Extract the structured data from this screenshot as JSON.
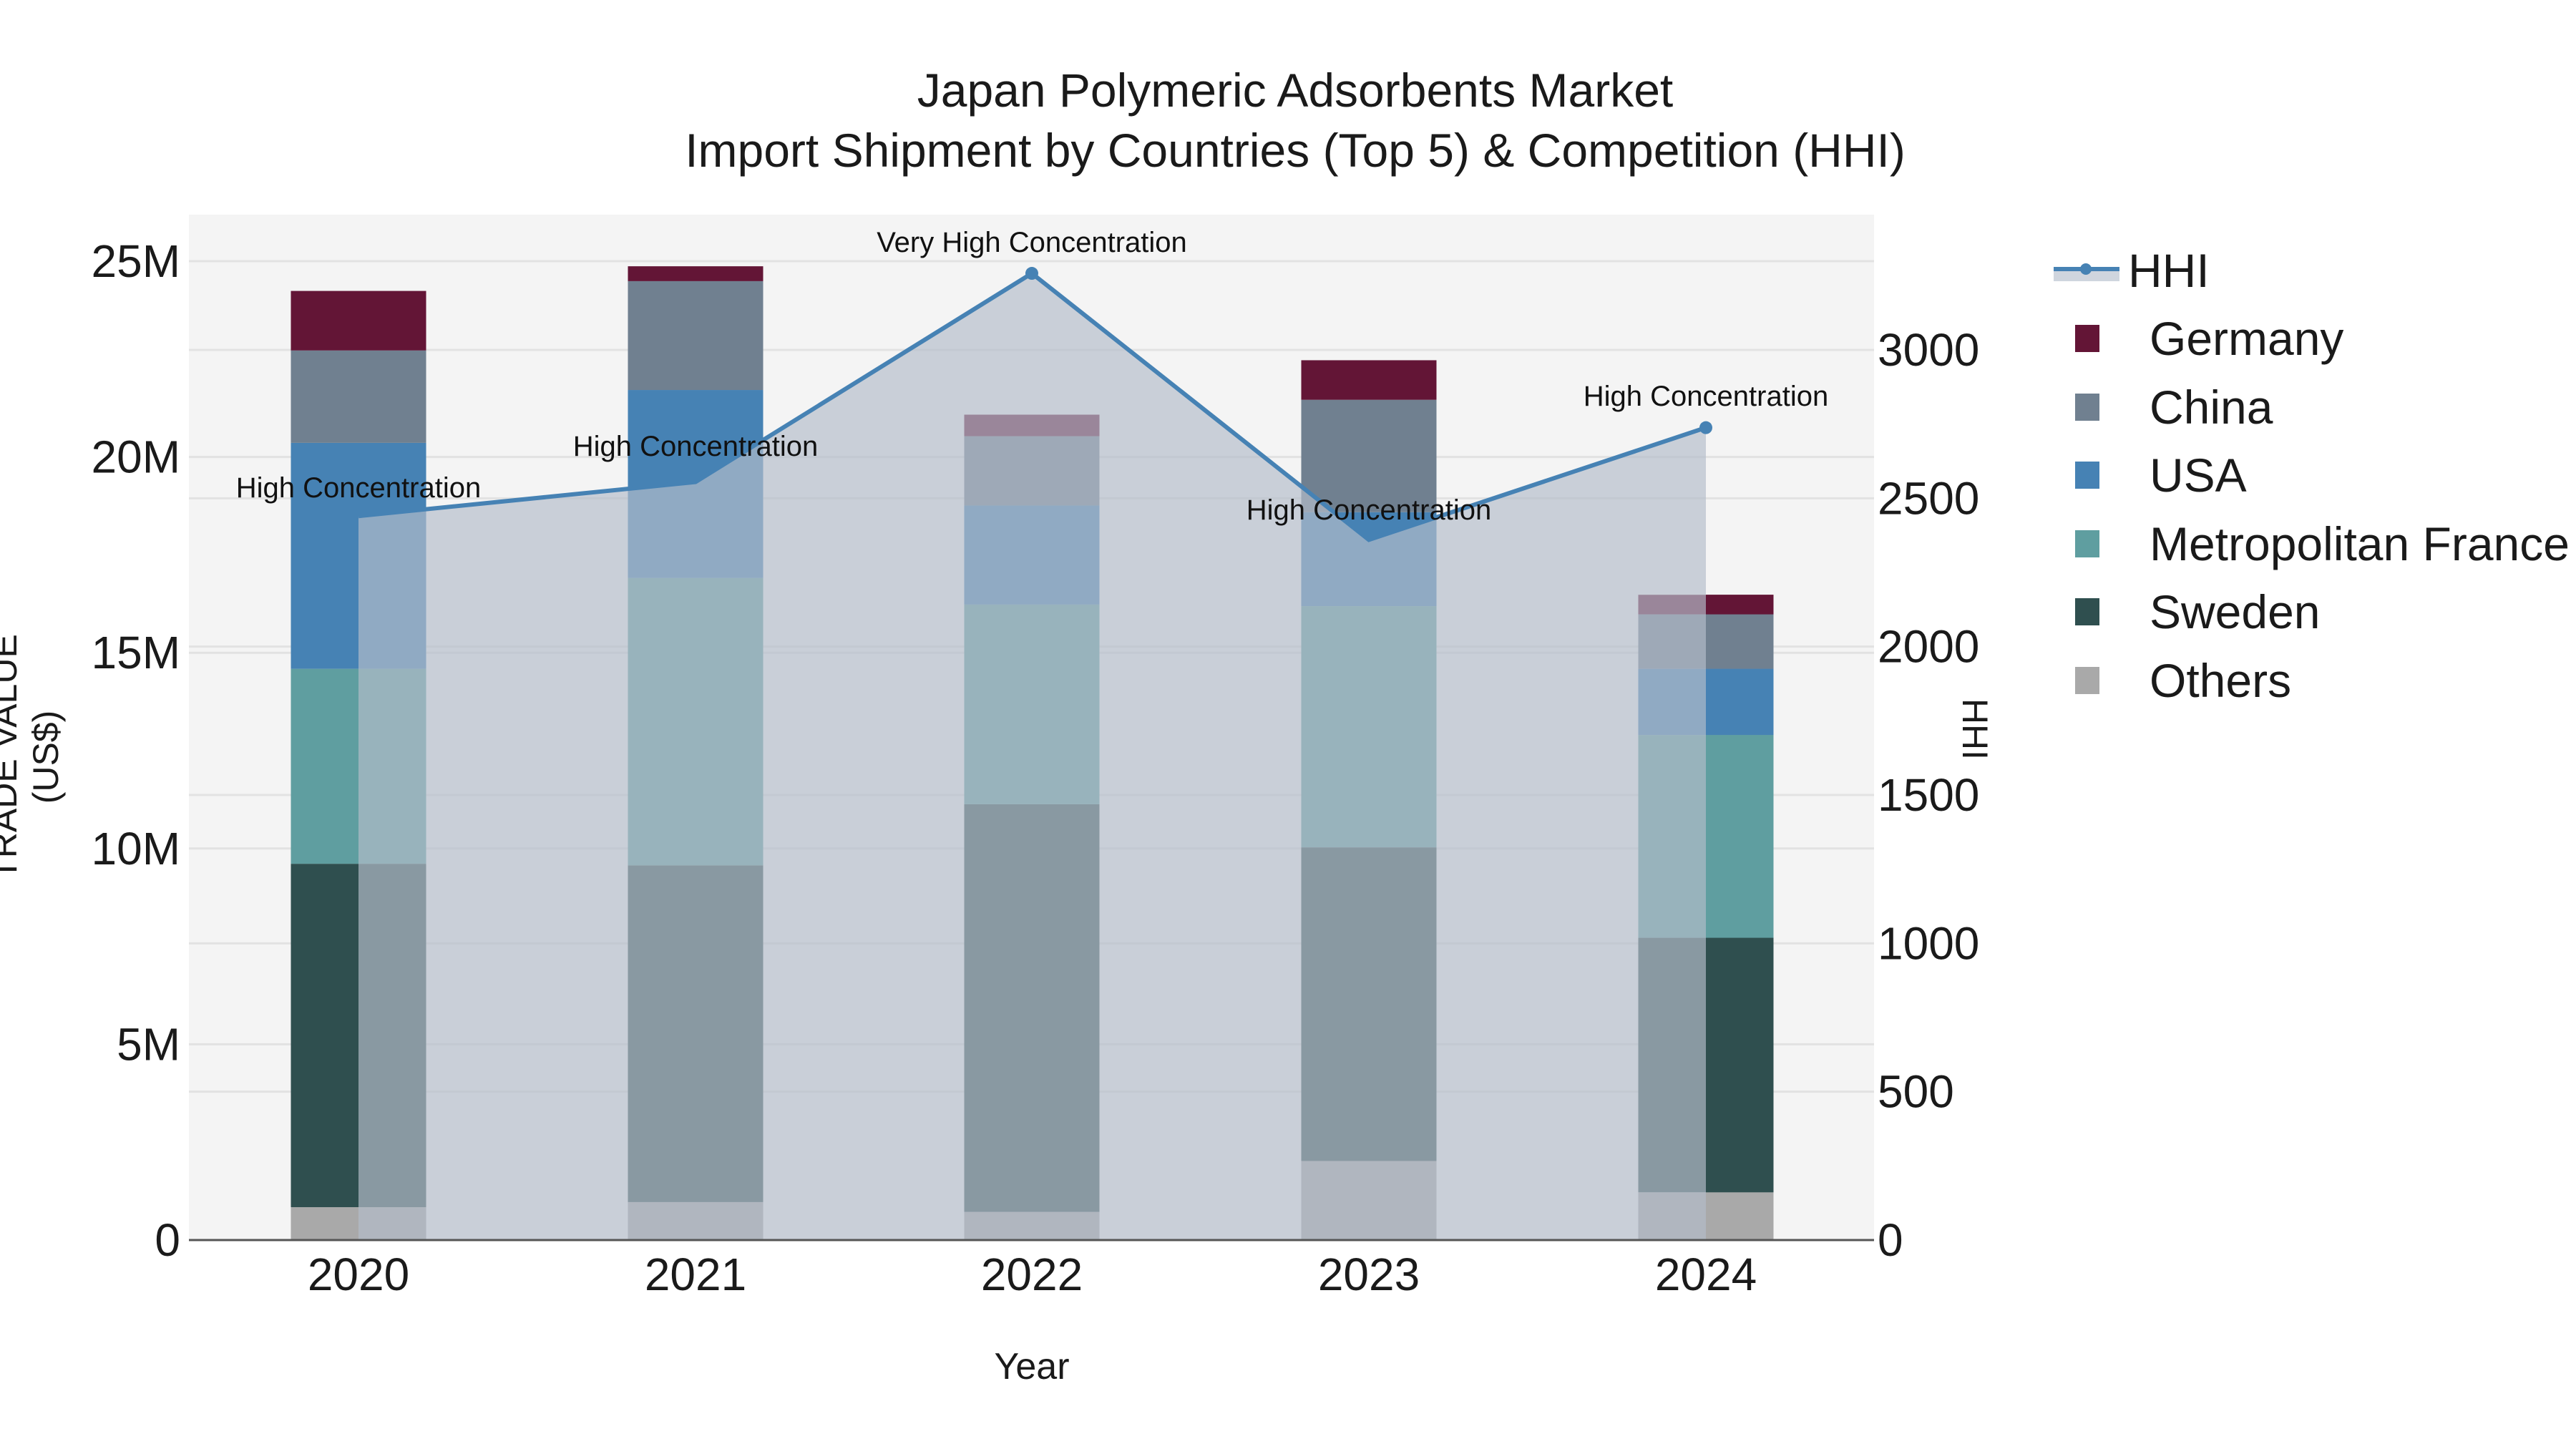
{
  "title": {
    "line1": "Japan Polymeric Adsorbents Market",
    "line2": "Import Shipment by Countries (Top 5) & Competition (HHI)"
  },
  "axes": {
    "x_title": "Year",
    "y_left_title": "TRADE VALUE (US$)",
    "y_right_title": "HHI",
    "y_left_ticks": [
      "0",
      "5M",
      "10M",
      "15M",
      "20M",
      "25M"
    ],
    "y_right_ticks": [
      "0",
      "500",
      "1000",
      "1500",
      "2000",
      "2500",
      "3000"
    ]
  },
  "legend": {
    "items": [
      {
        "label": "HHI",
        "type": "line",
        "color": "#4682b4"
      },
      {
        "label": "Germany",
        "type": "bar",
        "color": "#631536"
      },
      {
        "label": "China",
        "type": "bar",
        "color": "#708090"
      },
      {
        "label": "USA",
        "type": "bar",
        "color": "#4682b4"
      },
      {
        "label": "Metropolitan France",
        "type": "bar",
        "color": "#5f9ea0"
      },
      {
        "label": "Sweden",
        "type": "bar",
        "color": "#2f4f4f"
      },
      {
        "label": "Others",
        "type": "bar",
        "color": "#a9a9a9"
      }
    ]
  },
  "chart_data": {
    "type": "bar",
    "stacked": true,
    "title": "Japan Polymeric Adsorbents Market — Import Shipment by Countries (Top 5) & Competition (HHI)",
    "xlabel": "Year",
    "ylabel": "TRADE VALUE (US$)",
    "y2label": "HHI",
    "categories": [
      "2020",
      "2021",
      "2022",
      "2023",
      "2024"
    ],
    "ylim": [
      0,
      26000000
    ],
    "y2lim": [
      0,
      3450
    ],
    "grid": true,
    "legend_position": "right",
    "series": [
      {
        "name": "Others",
        "color": "#a9a9a9",
        "values": [
          840000,
          970000,
          720000,
          2020000,
          1220000
        ]
      },
      {
        "name": "Sweden",
        "color": "#2f4f4f",
        "values": [
          8770000,
          8600000,
          10410000,
          8010000,
          6500000
        ]
      },
      {
        "name": "Metropolitan France",
        "color": "#5f9ea0",
        "values": [
          4980000,
          7340000,
          5100000,
          6160000,
          5180000
        ]
      },
      {
        "name": "USA",
        "color": "#4682b4",
        "values": [
          5770000,
          4800000,
          2530000,
          2400000,
          1690000
        ]
      },
      {
        "name": "China",
        "color": "#708090",
        "values": [
          2360000,
          2780000,
          1770000,
          2870000,
          1390000
        ]
      },
      {
        "name": "Germany",
        "color": "#631536",
        "values": [
          1520000,
          380000,
          550000,
          1010000,
          500000
        ]
      }
    ],
    "line_series": {
      "name": "HHI",
      "axis": "right",
      "type": "line+area",
      "color": "#4682b4",
      "values": [
        2440,
        2555,
        3258,
        2360,
        2738
      ],
      "annotations": [
        "High Concentration",
        "High Concentration",
        "Very High Concentration",
        "High Concentration",
        "High Concentration"
      ]
    }
  }
}
